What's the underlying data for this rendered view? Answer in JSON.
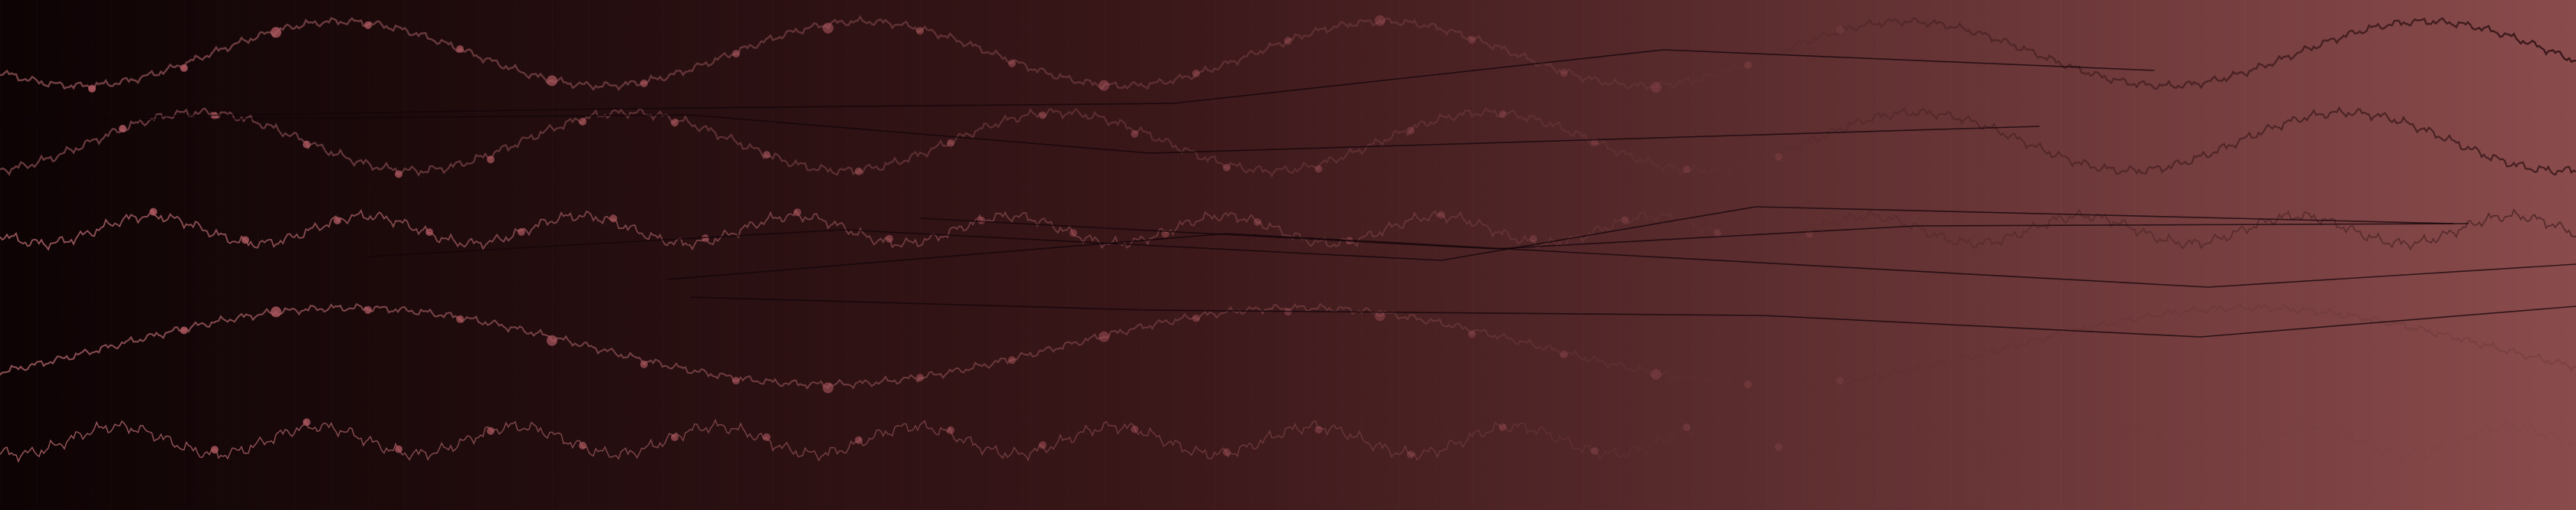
{
  "banner": {
    "gradient": {
      "start": "#0d0304",
      "mid": "#3a1719",
      "end": "#8a4b4c"
    },
    "wave_colors": {
      "light": "#b86a6f",
      "dark": "#2a0e10"
    },
    "dot_color": "#b05a61",
    "line_color": "#12040a"
  }
}
